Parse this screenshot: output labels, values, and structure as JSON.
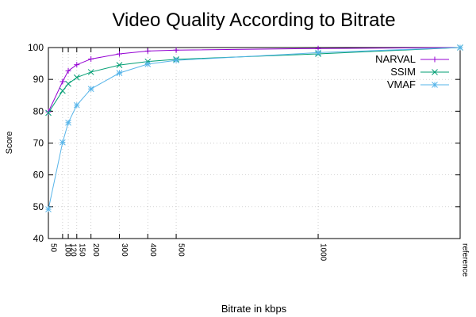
{
  "chart_data": {
    "type": "line",
    "title": "Video Quality According to Bitrate",
    "xlabel": "Bitrate in kbps",
    "ylabel": "Score",
    "ylim": [
      40,
      100
    ],
    "xlim": [
      50,
      1500
    ],
    "yticks": [
      40,
      50,
      60,
      70,
      80,
      90,
      100
    ],
    "xticks": [
      {
        "value": 50,
        "label": "50"
      },
      {
        "value": 100,
        "label": "100"
      },
      {
        "value": 120,
        "label": "120"
      },
      {
        "value": 150,
        "label": "150"
      },
      {
        "value": 200,
        "label": "200"
      },
      {
        "value": 300,
        "label": "300"
      },
      {
        "value": 400,
        "label": "400"
      },
      {
        "value": 500,
        "label": "500"
      },
      {
        "value": 1000,
        "label": "1000"
      },
      {
        "value": 1500,
        "label": "reference"
      }
    ],
    "x": [
      50,
      100,
      120,
      150,
      200,
      300,
      400,
      500,
      1000,
      1500
    ],
    "grid": true,
    "legend_position": "top-right",
    "series": [
      {
        "name": "NARVAL",
        "marker": "plus",
        "color": "#9400d3",
        "values": [
          79.8,
          89.3,
          92.7,
          94.6,
          96.4,
          98.0,
          98.9,
          99.2,
          99.7,
          100
        ]
      },
      {
        "name": "SSIM",
        "marker": "cross",
        "color": "#009e73",
        "values": [
          79.5,
          86.4,
          88.6,
          90.6,
          92.3,
          94.5,
          95.6,
          96.3,
          98.0,
          100
        ]
      },
      {
        "name": "VMAF",
        "marker": "star",
        "color": "#56b4e9",
        "values": [
          49.2,
          70.2,
          76.4,
          81.9,
          87.0,
          92.0,
          94.8,
          96.0,
          98.4,
          100
        ]
      }
    ]
  }
}
